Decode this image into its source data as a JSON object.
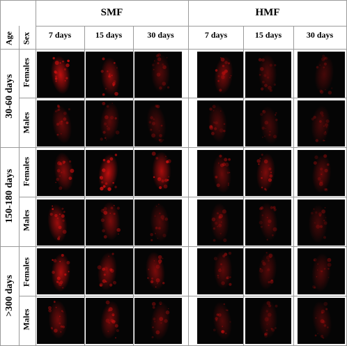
{
  "header": {
    "age_label": "Age",
    "sex_label": "Sex",
    "groups": [
      "SMF",
      "HMF"
    ],
    "timepoints": [
      "7 days",
      "15 days",
      "30 days",
      "7 days",
      "15 days",
      "30 days"
    ]
  },
  "rows": [
    {
      "age": "30-60 days",
      "sexes": [
        "Females",
        "Males"
      ]
    },
    {
      "age": "150-180 days",
      "sexes": [
        "Females",
        "Males"
      ]
    },
    {
      "age": ">300 days",
      "sexes": [
        "Females",
        "Males"
      ]
    }
  ],
  "colors": {
    "fluorescence": "#e01010",
    "background": "#050505",
    "grid": "#9a9a9a"
  }
}
